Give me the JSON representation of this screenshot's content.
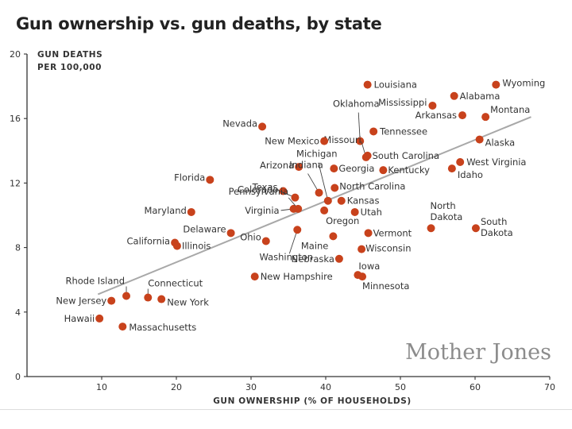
{
  "title": "Gun ownership vs. gun deaths, by state",
  "credit": "Mother Jones",
  "chart_data": {
    "type": "scatter",
    "title": "Gun ownership vs. gun deaths, by state",
    "xlabel": "GUN OWNERSHIP (% OF HOUSEHOLDS)",
    "ylabel_lines": [
      "GUN DEATHS",
      "PER 100,000"
    ],
    "xlim": [
      0,
      70
    ],
    "ylim": [
      0,
      20
    ],
    "x_ticks": [
      10,
      20,
      30,
      40,
      50,
      60,
      70
    ],
    "y_ticks": [
      0,
      4,
      8,
      12,
      16,
      20
    ],
    "trendline": {
      "x": [
        9.5,
        67.5
      ],
      "y": [
        5.1,
        16.1
      ]
    },
    "points": [
      {
        "state": "Louisiana",
        "x": 45.6,
        "y": 18.1
      },
      {
        "state": "Wyoming",
        "x": 62.8,
        "y": 18.1
      },
      {
        "state": "Alabama",
        "x": 57.2,
        "y": 17.4
      },
      {
        "state": "Mississippi",
        "x": 54.3,
        "y": 16.8
      },
      {
        "state": "Arkansas",
        "x": 58.3,
        "y": 16.2
      },
      {
        "state": "Montana",
        "x": 61.4,
        "y": 16.1
      },
      {
        "state": "Oklahoma",
        "x": 44.6,
        "y": 14.6
      },
      {
        "state": "Nevada",
        "x": 31.5,
        "y": 15.5
      },
      {
        "state": "Missouri",
        "x": 45.4,
        "y": 13.6
      },
      {
        "state": "Tennessee",
        "x": 46.4,
        "y": 15.2
      },
      {
        "state": "New Mexico",
        "x": 39.8,
        "y": 14.6
      },
      {
        "state": "Alaska",
        "x": 60.6,
        "y": 14.7
      },
      {
        "state": "South Carolina",
        "x": 45.6,
        "y": 13.7
      },
      {
        "state": "West Virginia",
        "x": 58.0,
        "y": 13.3
      },
      {
        "state": "Arizona",
        "x": 36.4,
        "y": 13.0
      },
      {
        "state": "Georgia",
        "x": 41.1,
        "y": 12.9
      },
      {
        "state": "Kentucky",
        "x": 47.7,
        "y": 12.8
      },
      {
        "state": "Idaho",
        "x": 56.9,
        "y": 12.9
      },
      {
        "state": "Florida",
        "x": 24.5,
        "y": 12.2
      },
      {
        "state": "Michigan",
        "x": 40.3,
        "y": 10.9
      },
      {
        "state": "North Carolina",
        "x": 41.2,
        "y": 11.7
      },
      {
        "state": "Indiana",
        "x": 39.1,
        "y": 11.4
      },
      {
        "state": "Colorado",
        "x": 34.3,
        "y": 11.5
      },
      {
        "state": "Texas",
        "x": 35.9,
        "y": 11.1
      },
      {
        "state": "Kansas",
        "x": 42.1,
        "y": 10.9
      },
      {
        "state": "Maryland",
        "x": 22.0,
        "y": 10.2
      },
      {
        "state": "Virginia",
        "x": 35.7,
        "y": 10.4
      },
      {
        "state": "Pennsylvania",
        "x": 36.3,
        "y": 10.4
      },
      {
        "state": "Oregon",
        "x": 39.8,
        "y": 10.3
      },
      {
        "state": "Utah",
        "x": 43.9,
        "y": 10.2
      },
      {
        "state": "North Dakota",
        "x": 54.1,
        "y": 9.2
      },
      {
        "state": "South Dakota",
        "x": 60.1,
        "y": 9.2
      },
      {
        "state": "Delaware",
        "x": 27.3,
        "y": 8.9
      },
      {
        "state": "California",
        "x": 19.8,
        "y": 8.3
      },
      {
        "state": "Illinois",
        "x": 20.1,
        "y": 8.1
      },
      {
        "state": "Ohio",
        "x": 32.0,
        "y": 8.4
      },
      {
        "state": "Washington",
        "x": 36.2,
        "y": 9.1
      },
      {
        "state": "Maine",
        "x": 41.0,
        "y": 8.7
      },
      {
        "state": "Vermont",
        "x": 45.7,
        "y": 8.9
      },
      {
        "state": "Wisconsin",
        "x": 44.8,
        "y": 7.9
      },
      {
        "state": "Nebraska",
        "x": 41.8,
        "y": 7.3
      },
      {
        "state": "Iowa",
        "x": 44.3,
        "y": 6.3
      },
      {
        "state": "Minnesota",
        "x": 44.9,
        "y": 6.2
      },
      {
        "state": "New Hampshire",
        "x": 30.5,
        "y": 6.2
      },
      {
        "state": "Rhode Island",
        "x": 13.3,
        "y": 5.0
      },
      {
        "state": "Connecticut",
        "x": 16.2,
        "y": 4.9
      },
      {
        "state": "New Jersey",
        "x": 11.3,
        "y": 4.7
      },
      {
        "state": "New York",
        "x": 18.0,
        "y": 4.8
      },
      {
        "state": "Hawaii",
        "x": 9.7,
        "y": 3.6
      },
      {
        "state": "Massachusetts",
        "x": 12.8,
        "y": 3.1
      }
    ]
  }
}
